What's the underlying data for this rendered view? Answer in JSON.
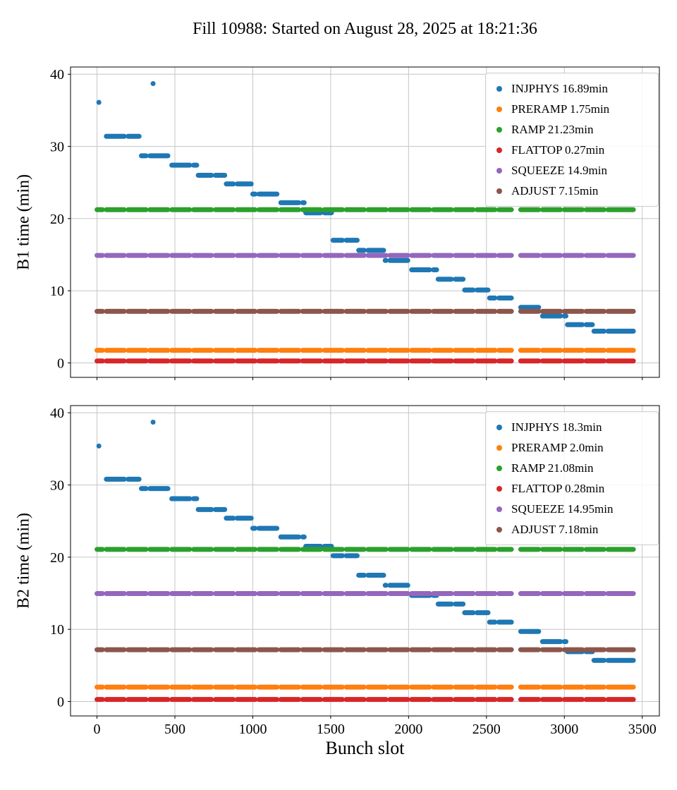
{
  "title": "Fill 10988: Started on August 28, 2025 at 18:21:36",
  "xlabel": "Bunch slot",
  "bunch_trains": [
    [
      0,
      35
    ],
    [
      60,
      175
    ],
    [
      200,
      315
    ],
    [
      340,
      455
    ],
    [
      480,
      595
    ],
    [
      620,
      735
    ],
    [
      760,
      875
    ],
    [
      900,
      1015
    ],
    [
      1040,
      1155
    ],
    [
      1180,
      1295
    ],
    [
      1320,
      1435
    ],
    [
      1460,
      1575
    ],
    [
      1600,
      1715
    ],
    [
      1740,
      1855
    ],
    [
      1880,
      1995
    ],
    [
      2020,
      2135
    ],
    [
      2160,
      2275
    ],
    [
      2300,
      2415
    ],
    [
      2440,
      2555
    ],
    [
      2580,
      2660
    ],
    [
      2720,
      2835
    ],
    [
      2860,
      2975
    ],
    [
      3000,
      3115
    ],
    [
      3140,
      3255
    ],
    [
      3280,
      3443
    ]
  ],
  "chart_data": [
    {
      "type": "scatter",
      "ylabel": "B1 time (min)",
      "xlabel": "Bunch slot",
      "xlim": [
        -170,
        3610
      ],
      "ylim": [
        -2,
        41
      ],
      "xticks": [
        0,
        500,
        1000,
        1500,
        2000,
        2500,
        3000,
        3500
      ],
      "yticks": [
        0,
        10,
        20,
        30,
        40
      ],
      "grid": true,
      "legend_position": "upper right",
      "series": [
        {
          "name": "INJPHYS",
          "legend": "INJPHYS 16.89min",
          "color": "#1f77b4",
          "points": [
            [
              12,
              36.1
            ],
            [
              360,
              38.7
            ]
          ],
          "steps": [
            [
              60,
              270,
              31.4
            ],
            [
              285,
              460,
              28.7
            ],
            [
              470,
              640,
              27.4
            ],
            [
              650,
              820,
              26.0
            ],
            [
              830,
              990,
              24.8
            ],
            [
              1000,
              1160,
              23.4
            ],
            [
              1170,
              1330,
              22.2
            ],
            [
              1340,
              1505,
              20.8
            ],
            [
              1515,
              1670,
              17.0
            ],
            [
              1680,
              1840,
              15.6
            ],
            [
              1850,
              2010,
              14.2
            ],
            [
              2020,
              2180,
              12.9
            ],
            [
              2190,
              2350,
              11.6
            ],
            [
              2360,
              2510,
              10.1
            ],
            [
              2520,
              2670,
              9.0
            ],
            [
              2680,
              2840,
              7.7
            ],
            [
              2850,
              3010,
              6.5
            ],
            [
              3020,
              3180,
              5.3
            ],
            [
              3190,
              3443,
              4.4
            ]
          ]
        },
        {
          "name": "PRERAMP",
          "legend": "PRERAMP 1.75min",
          "color": "#ff7f0e",
          "y": 1.75
        },
        {
          "name": "RAMP",
          "legend": "RAMP 21.23min",
          "color": "#2ca02c",
          "y": 21.23
        },
        {
          "name": "FLATTOP",
          "legend": "FLATTOP 0.27min",
          "color": "#d62728",
          "y": 0.27
        },
        {
          "name": "SQUEEZE",
          "legend": "SQUEEZE 14.9min",
          "color": "#9467bd",
          "y": 14.9
        },
        {
          "name": "ADJUST",
          "legend": "ADJUST 7.15min",
          "color": "#8c564b",
          "y": 7.15
        }
      ]
    },
    {
      "type": "scatter",
      "ylabel": "B2 time (min)",
      "xlabel": "Bunch slot",
      "xlim": [
        -170,
        3610
      ],
      "ylim": [
        -2,
        41
      ],
      "xticks": [
        0,
        500,
        1000,
        1500,
        2000,
        2500,
        3000,
        3500
      ],
      "yticks": [
        0,
        10,
        20,
        30,
        40
      ],
      "grid": true,
      "legend_position": "upper right",
      "series": [
        {
          "name": "INJPHYS",
          "legend": "INJPHYS 18.3min",
          "color": "#1f77b4",
          "points": [
            [
              12,
              35.4
            ],
            [
              360,
              38.7
            ]
          ],
          "steps": [
            [
              60,
              270,
              30.8
            ],
            [
              285,
              460,
              29.5
            ],
            [
              470,
              640,
              28.1
            ],
            [
              650,
              820,
              26.6
            ],
            [
              830,
              990,
              25.4
            ],
            [
              1000,
              1160,
              24.0
            ],
            [
              1170,
              1330,
              22.8
            ],
            [
              1340,
              1505,
              21.5
            ],
            [
              1515,
              1670,
              20.2
            ],
            [
              1680,
              1840,
              17.5
            ],
            [
              1850,
              2010,
              16.1
            ],
            [
              2020,
              2180,
              14.7
            ],
            [
              2190,
              2350,
              13.5
            ],
            [
              2360,
              2510,
              12.3
            ],
            [
              2520,
              2670,
              11.0
            ],
            [
              2680,
              2840,
              9.7
            ],
            [
              2850,
              3010,
              8.3
            ],
            [
              3020,
              3180,
              6.9
            ],
            [
              3190,
              3443,
              5.7
            ]
          ]
        },
        {
          "name": "PRERAMP",
          "legend": "PRERAMP 2.0min",
          "color": "#ff7f0e",
          "y": 2.0
        },
        {
          "name": "RAMP",
          "legend": "RAMP 21.08min",
          "color": "#2ca02c",
          "y": 21.08
        },
        {
          "name": "FLATTOP",
          "legend": "FLATTOP 0.28min",
          "color": "#d62728",
          "y": 0.28
        },
        {
          "name": "SQUEEZE",
          "legend": "SQUEEZE 14.95min",
          "color": "#9467bd",
          "y": 14.95
        },
        {
          "name": "ADJUST",
          "legend": "ADJUST 7.18min",
          "color": "#8c564b",
          "y": 7.18
        }
      ]
    }
  ]
}
